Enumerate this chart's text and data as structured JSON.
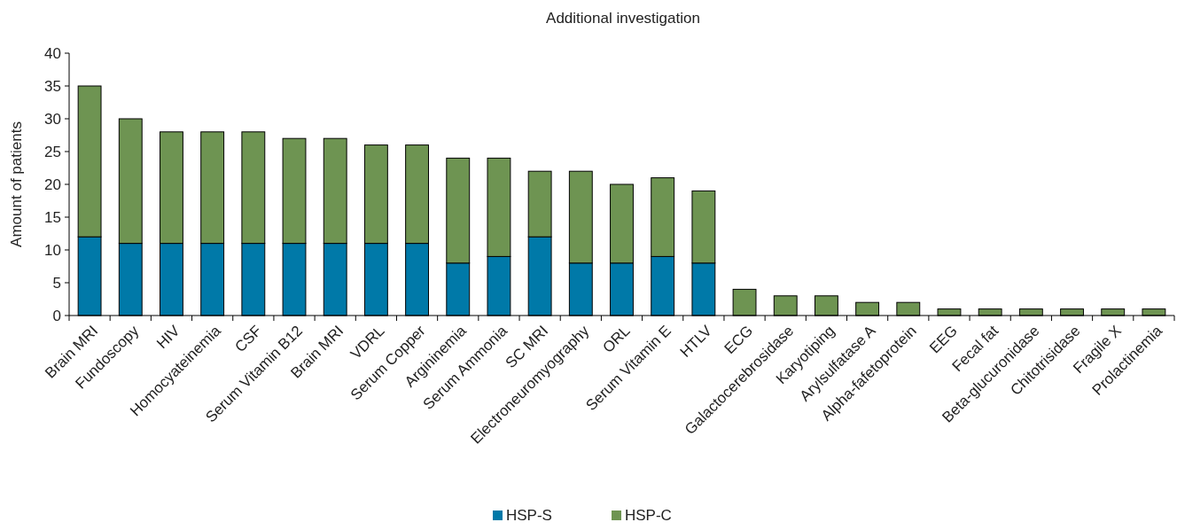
{
  "chart_data": {
    "type": "bar",
    "title": "Additional investigation",
    "ylabel": "Amount of patients",
    "stacked": true,
    "categories": [
      "Brain MRI",
      "Fundoscopy",
      "HIV",
      "Homocyateinemia",
      "CSF",
      "Serum Vitamin B12",
      "Brain MRI",
      "VDRL",
      "Serum Copper",
      "Argininemia",
      "Serum Ammonia",
      "SC MRI",
      "Electroneuromyography",
      "ORL",
      "Serum Vitamin E",
      "HTLV",
      "ECG",
      "Galactocerebrosidase",
      "Karyotiping",
      "Arylsulfatase A",
      "Alpha-fafetoprotein",
      "EEG",
      "Fecal fat",
      "Beta-glucuronidase",
      "Chitotrisidase",
      "Fragile X",
      "Prolactinemia"
    ],
    "series": [
      {
        "name": "HSP-S",
        "color": "#0079a8",
        "values": [
          12,
          11,
          11,
          11,
          11,
          11,
          11,
          11,
          11,
          8,
          9,
          12,
          8,
          8,
          9,
          8,
          null,
          null,
          null,
          null,
          null,
          null,
          null,
          null,
          null,
          null,
          null
        ]
      },
      {
        "name": "HSP-C",
        "color": "#6e9452",
        "values": [
          23,
          19,
          17,
          17,
          17,
          16,
          16,
          15,
          15,
          16,
          15,
          10,
          14,
          12,
          12,
          11,
          4,
          3,
          3,
          2,
          2,
          1,
          1,
          1,
          1,
          1,
          1
        ]
      }
    ],
    "ylim": [
      0,
      40
    ],
    "yticks": [
      0,
      5,
      10,
      15,
      20,
      25,
      30,
      35,
      40
    ],
    "grid": false,
    "legend": "bottom"
  }
}
